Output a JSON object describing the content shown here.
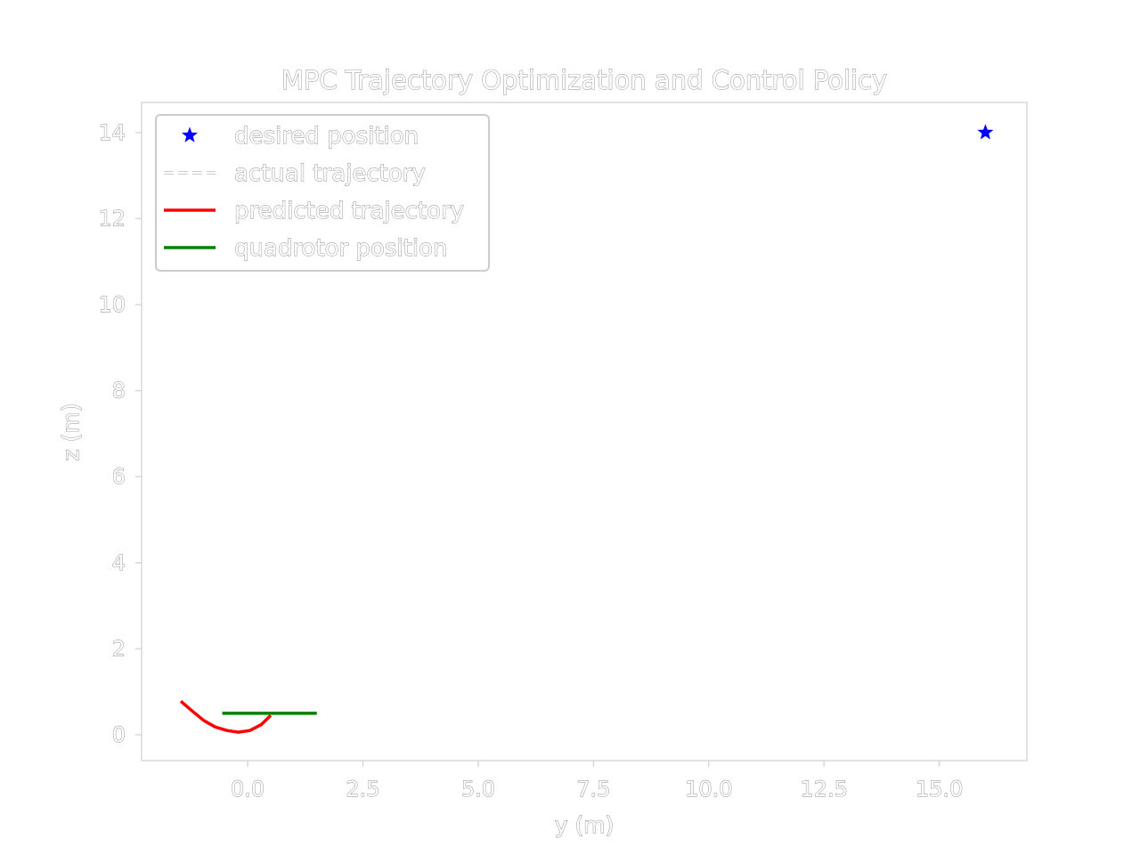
{
  "chart_data": {
    "type": "line",
    "title": "MPC Trajectory Optimization and Control Policy",
    "xlabel": "y (m)",
    "ylabel": "z (m)",
    "xlim": [
      -2.3,
      16.9
    ],
    "ylim": [
      -0.6,
      14.7
    ],
    "xticks": [
      0.0,
      2.5,
      5.0,
      7.5,
      10.0,
      12.5,
      15.0
    ],
    "xtick_labels": [
      "0.0",
      "2.5",
      "5.0",
      "7.5",
      "10.0",
      "12.5",
      "15.0"
    ],
    "yticks": [
      0,
      2,
      4,
      6,
      8,
      10,
      12,
      14
    ],
    "ytick_labels": [
      "0",
      "2",
      "4",
      "6",
      "8",
      "10",
      "12",
      "14"
    ],
    "grid": false,
    "legend_position": "top-left",
    "legend": [
      {
        "label": "desired position",
        "marker": "star",
        "color": "#0000ff"
      },
      {
        "label": "actual trajectory",
        "style": "dashed",
        "color": "#ffffff"
      },
      {
        "label": "predicted trajectory",
        "style": "solid",
        "color": "#ff0000"
      },
      {
        "label": "quadrotor position",
        "style": "solid",
        "color": "#008000"
      }
    ],
    "series": [
      {
        "name": "desired position",
        "kind": "marker",
        "color": "#0000ff",
        "points": [
          {
            "x": 16.0,
            "y": 14.0
          }
        ]
      },
      {
        "name": "predicted trajectory",
        "kind": "line",
        "color": "#ff0000",
        "points": [
          {
            "x": -1.45,
            "y": 0.78
          },
          {
            "x": -1.2,
            "y": 0.55
          },
          {
            "x": -0.95,
            "y": 0.33
          },
          {
            "x": -0.7,
            "y": 0.18
          },
          {
            "x": -0.45,
            "y": 0.1
          },
          {
            "x": -0.2,
            "y": 0.06
          },
          {
            "x": 0.05,
            "y": 0.1
          },
          {
            "x": 0.3,
            "y": 0.24
          },
          {
            "x": 0.5,
            "y": 0.45
          }
        ]
      },
      {
        "name": "quadrotor position",
        "kind": "line",
        "color": "#008000",
        "points": [
          {
            "x": -0.55,
            "y": 0.5
          },
          {
            "x": 1.5,
            "y": 0.5
          }
        ]
      }
    ]
  }
}
